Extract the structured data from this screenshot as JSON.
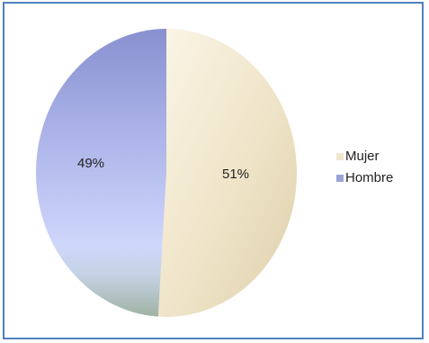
{
  "chart_data": {
    "type": "pie",
    "categories": [
      "Mujer",
      "Hombre"
    ],
    "values": [
      51,
      49
    ],
    "data_labels": [
      "51%",
      "49%"
    ],
    "title": "",
    "legend_placement": "right",
    "colors": [
      "#eee3c7",
      "#a9b0df"
    ]
  },
  "legend": {
    "items": [
      {
        "label": "Mujer",
        "color": "#efe6cf"
      },
      {
        "label": "Hombre",
        "color": "#9aa3d8"
      }
    ]
  }
}
